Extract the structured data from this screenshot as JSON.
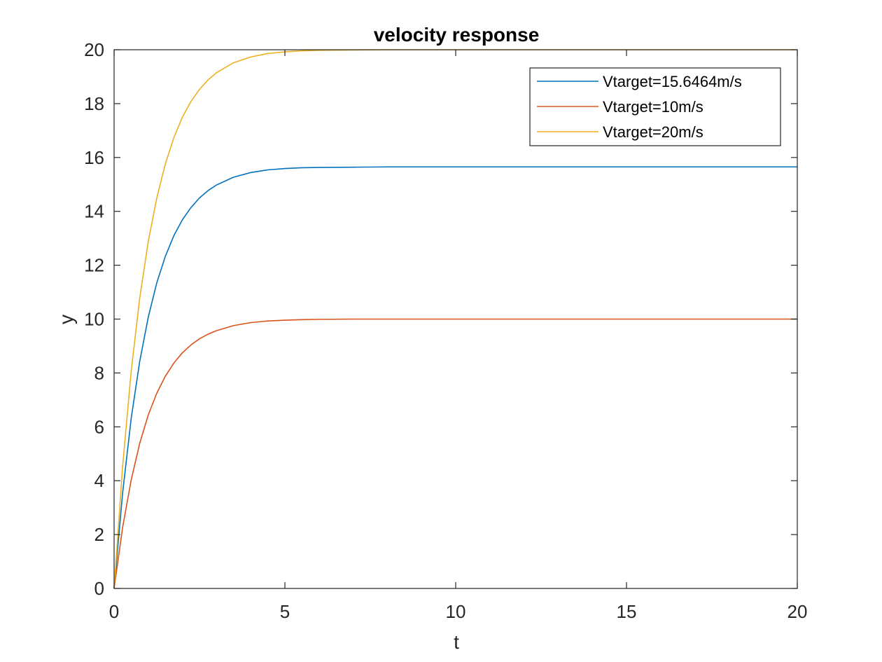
{
  "chart_data": {
    "type": "line",
    "title": "velocity response",
    "xlabel": "t",
    "ylabel": "y",
    "xlim": [
      0,
      20
    ],
    "ylim": [
      0,
      20
    ],
    "xticks": [
      0,
      5,
      10,
      15,
      20
    ],
    "yticks": [
      0,
      2,
      4,
      6,
      8,
      10,
      12,
      14,
      16,
      18,
      20
    ],
    "grid": false,
    "box": true,
    "legend_location": "top-right",
    "x": [
      0,
      0.25,
      0.5,
      0.75,
      1,
      1.25,
      1.5,
      1.75,
      2,
      2.25,
      2.5,
      2.75,
      3,
      3.5,
      4,
      4.5,
      5,
      5.5,
      6,
      7,
      8,
      9,
      10,
      12,
      14,
      16,
      18,
      20
    ],
    "series": [
      {
        "name": "Vtarget=15.6464m/s",
        "color": "#0072BD",
        "values": [
          0,
          3.55,
          6.31,
          8.43,
          10.07,
          11.35,
          12.33,
          13.1,
          13.69,
          14.14,
          14.5,
          14.77,
          14.98,
          15.27,
          15.44,
          15.54,
          15.59,
          15.62,
          15.63,
          15.64,
          15.65,
          15.65,
          15.65,
          15.65,
          15.65,
          15.65,
          15.65,
          15.65
        ]
      },
      {
        "name": "Vtarget=10m/s",
        "color": "#D95319",
        "values": [
          0,
          2.27,
          4.03,
          5.39,
          6.44,
          7.25,
          7.88,
          8.37,
          8.75,
          9.04,
          9.27,
          9.44,
          9.57,
          9.76,
          9.87,
          9.93,
          9.96,
          9.98,
          9.99,
          10.0,
          10.0,
          10.0,
          10.0,
          10.0,
          10.0,
          10.0,
          10.0,
          10.0
        ]
      },
      {
        "name": "Vtarget=20m/s",
        "color": "#EDB120",
        "values": [
          0,
          4.54,
          8.06,
          10.78,
          12.88,
          14.5,
          15.76,
          16.74,
          17.5,
          18.08,
          18.53,
          18.88,
          19.15,
          19.52,
          19.73,
          19.86,
          19.92,
          19.96,
          19.98,
          19.99,
          20.0,
          20.0,
          20.0,
          20.0,
          20.0,
          20.0,
          20.0,
          20.0
        ]
      }
    ]
  }
}
